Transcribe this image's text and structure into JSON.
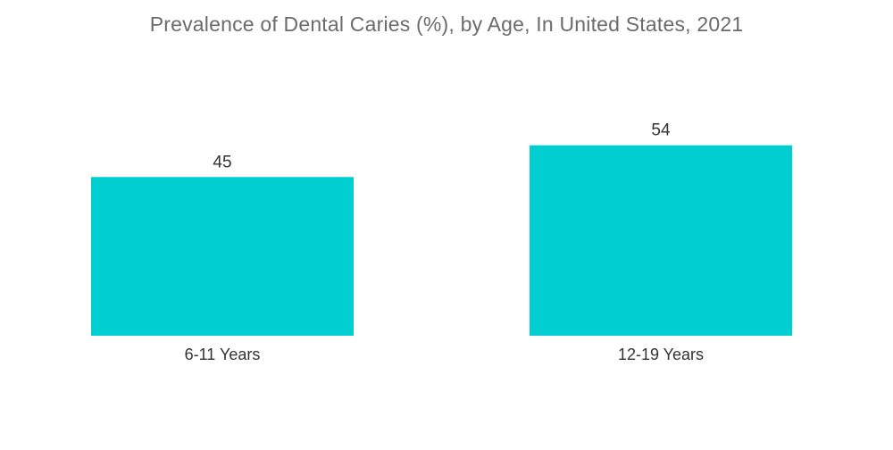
{
  "chart_data": {
    "type": "bar",
    "title": "Prevalence of Dental Caries (%), by Age, In United States, 2021",
    "categories": [
      "6-11 Years",
      "12-19 Years"
    ],
    "values": [
      45,
      54
    ],
    "xlabel": "",
    "ylabel": "",
    "ylim": [
      0,
      100
    ],
    "grid": false,
    "colors": {
      "bar": "#00CED1"
    }
  }
}
